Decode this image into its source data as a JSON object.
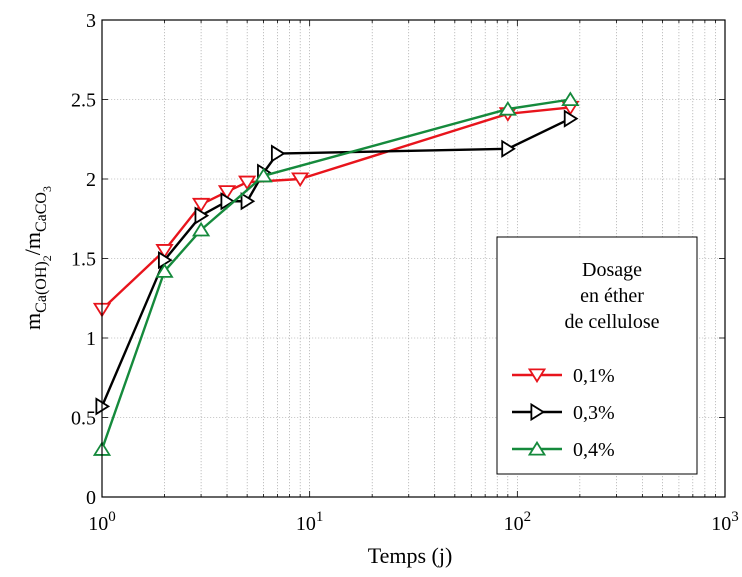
{
  "chart_data": {
    "type": "line",
    "title": "",
    "xlabel": "Temps (j)",
    "ylabel": {
      "base1": "m",
      "sub1": "Ca(OH)",
      "subsub1": "2",
      "sep": "/m",
      "sub2": "CaCO",
      "subsub2": "3"
    },
    "xscale": "log",
    "xlim": [
      1,
      1000
    ],
    "ylim": [
      0,
      3
    ],
    "grid": true,
    "x_ticks": [
      {
        "value": 1,
        "base": "10",
        "exp": "0"
      },
      {
        "value": 10,
        "base": "10",
        "exp": "1"
      },
      {
        "value": 100,
        "base": "10",
        "exp": "2"
      },
      {
        "value": 1000,
        "base": "10",
        "exp": "3"
      }
    ],
    "y_ticks": [
      {
        "value": 0,
        "label": "0"
      },
      {
        "value": 0.5,
        "label": "0.5"
      },
      {
        "value": 1,
        "label": "1"
      },
      {
        "value": 1.5,
        "label": "1.5"
      },
      {
        "value": 2,
        "label": "2"
      },
      {
        "value": 2.5,
        "label": "2.5"
      },
      {
        "value": 3,
        "label": "3"
      }
    ],
    "legend": {
      "position": "right",
      "title_lines": [
        "Dosage",
        "en éther",
        "de cellulose"
      ]
    },
    "series": [
      {
        "name": "0,1%",
        "color": "#e8141c",
        "marker": "triangle-down",
        "x": [
          1,
          2,
          3,
          4,
          5,
          9,
          90,
          180
        ],
        "y": [
          1.18,
          1.55,
          1.84,
          1.92,
          1.98,
          2.0,
          2.41,
          2.45
        ]
      },
      {
        "name": "0,3%",
        "color": "#000000",
        "marker": "triangle-right",
        "x": [
          1,
          2,
          3,
          4,
          5,
          6,
          7,
          90,
          180
        ],
        "y": [
          0.57,
          1.49,
          1.77,
          1.86,
          1.86,
          2.04,
          2.16,
          2.19,
          2.38
        ]
      },
      {
        "name": "0,4%",
        "color": "#158a3c",
        "marker": "triangle-up",
        "x": [
          1,
          2,
          3,
          6,
          90,
          180
        ],
        "y": [
          0.3,
          1.42,
          1.68,
          2.02,
          2.44,
          2.5
        ]
      }
    ]
  }
}
